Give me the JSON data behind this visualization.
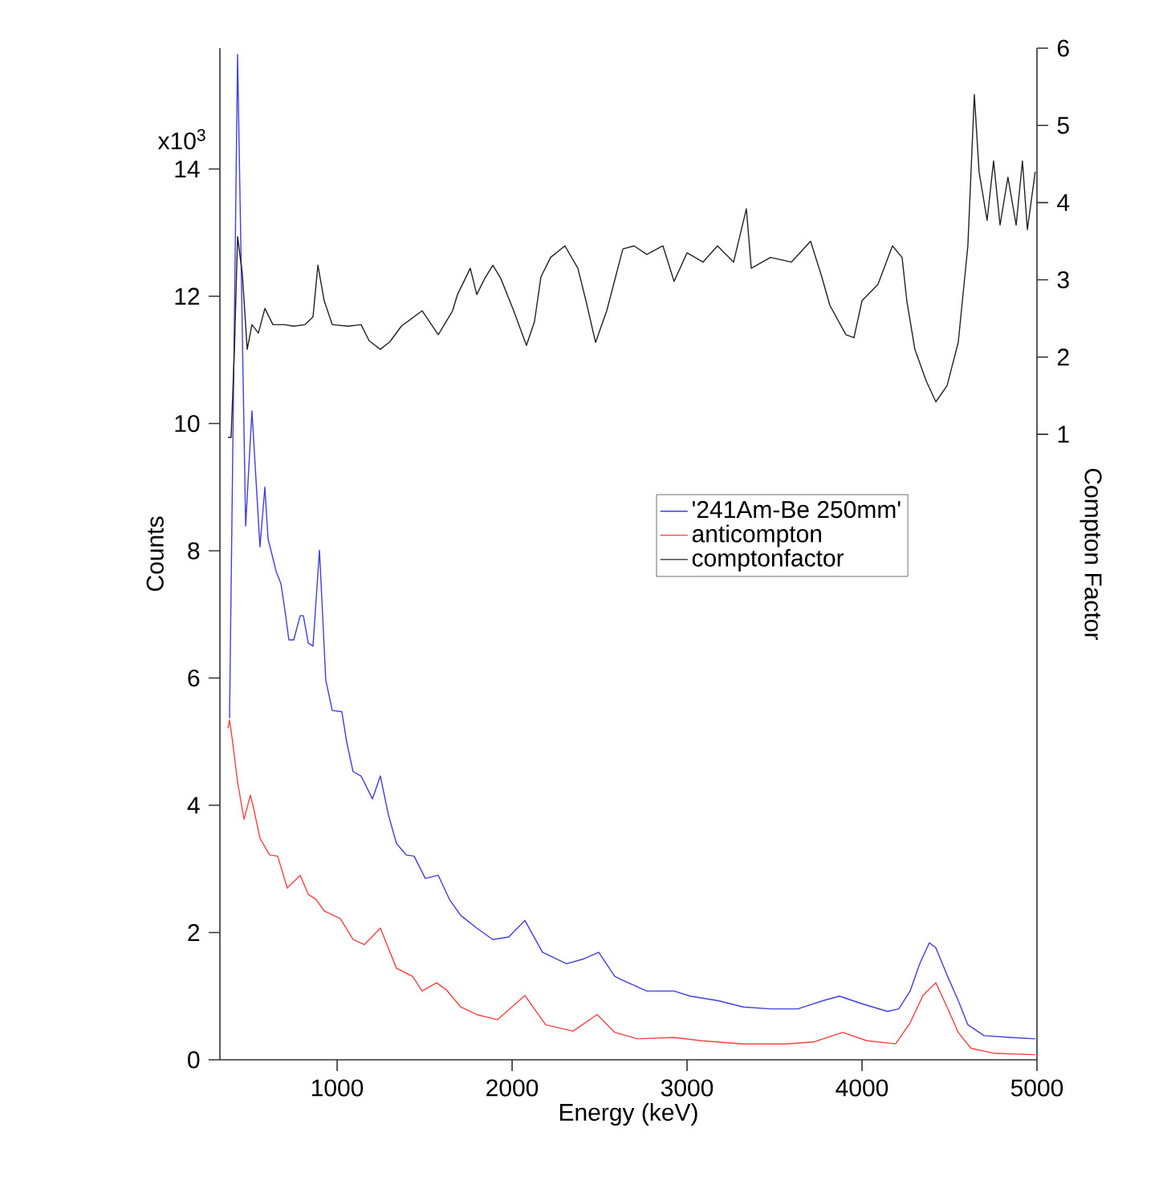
{
  "chart_data": {
    "type": "line",
    "xlabel": "Energy (keV)",
    "ylabel": "Counts",
    "y2label": "Compton Factor",
    "xlim": [
      330,
      5000
    ],
    "xticks": [
      1000,
      2000,
      3000,
      4000,
      5000
    ],
    "ylim": [
      0,
      15.9
    ],
    "yticks": [
      0,
      2,
      4,
      6,
      8,
      10,
      12,
      14
    ],
    "annotations": [
      "x10$^{3}$"
    ],
    "y2lim": [
      -7.1,
      6
    ],
    "y2ticks": [
      1,
      2,
      3,
      4,
      5,
      6
    ],
    "legend": "right",
    "series": [
      {
        "name": "'241Am-Be 250mm'",
        "color": "#3f3fe0",
        "x": [
          385,
          431,
          477,
          513,
          559,
          587,
          605,
          651,
          679,
          706,
          724,
          752,
          789,
          807,
          835,
          862,
          899,
          935,
          972,
          1027,
          1055,
          1091,
          1137,
          1202,
          1247,
          1293,
          1339,
          1394,
          1440,
          1504,
          1578,
          1642,
          1706,
          1798,
          1890,
          1981,
          2073,
          2174,
          2311,
          2403,
          2495,
          2587,
          2624,
          2770,
          2926,
          3018,
          3174,
          3321,
          3477,
          3633,
          3779,
          3871,
          4000,
          4146,
          4210,
          4275,
          4330,
          4385,
          4422,
          4486,
          4550,
          4605,
          4697,
          4853,
          4990
        ],
        "values": [
          5.37,
          15.8,
          8.39,
          10.2,
          8.06,
          9.0,
          8.19,
          7.68,
          7.48,
          6.98,
          6.6,
          6.6,
          6.98,
          6.98,
          6.55,
          6.5,
          8.01,
          5.97,
          5.49,
          5.47,
          4.99,
          4.53,
          4.46,
          4.1,
          4.46,
          3.85,
          3.4,
          3.22,
          3.2,
          2.85,
          2.9,
          2.52,
          2.27,
          2.07,
          1.89,
          1.93,
          2.19,
          1.69,
          1.51,
          1.58,
          1.69,
          1.31,
          1.26,
          1.08,
          1.08,
          1.0,
          0.93,
          0.83,
          0.8,
          0.8,
          0.93,
          1.0,
          0.88,
          0.76,
          0.8,
          1.08,
          1.51,
          1.84,
          1.76,
          1.33,
          0.93,
          0.55,
          0.38,
          0.35,
          0.33
        ]
      },
      {
        "name": "anticompton",
        "color": "#ff4040",
        "x": [
          376,
          385,
          403,
          431,
          468,
          504,
          523,
          559,
          614,
          660,
          715,
          789,
          835,
          880,
          926,
          1018,
          1091,
          1156,
          1247,
          1339,
          1431,
          1486,
          1568,
          1624,
          1706,
          1798,
          1917,
          1991,
          2073,
          2192,
          2348,
          2486,
          2587,
          2715,
          2926,
          3082,
          3321,
          3568,
          3724,
          3890,
          4027,
          4192,
          4275,
          4348,
          4422,
          4486,
          4550,
          4623,
          4761,
          4990
        ],
        "values": [
          5.21,
          5.34,
          4.99,
          4.36,
          3.78,
          4.16,
          3.95,
          3.48,
          3.22,
          3.2,
          2.7,
          2.9,
          2.6,
          2.52,
          2.34,
          2.22,
          1.89,
          1.81,
          2.07,
          1.44,
          1.31,
          1.08,
          1.21,
          1.1,
          0.83,
          0.71,
          0.63,
          0.81,
          1.01,
          0.55,
          0.45,
          0.71,
          0.43,
          0.33,
          0.35,
          0.3,
          0.25,
          0.25,
          0.28,
          0.43,
          0.3,
          0.25,
          0.58,
          1.01,
          1.21,
          0.83,
          0.43,
          0.18,
          0.1,
          0.08
        ]
      },
      {
        "name": "comptonfactor",
        "color": "#222222",
        "axis": "y2",
        "x": [
          376,
          394,
          413,
          431,
          458,
          486,
          513,
          550,
          587,
          633,
          697,
          752,
          816,
          862,
          890,
          926,
          972,
          1064,
          1137,
          1183,
          1247,
          1302,
          1367,
          1486,
          1578,
          1660,
          1688,
          1761,
          1798,
          1844,
          1890,
          1935,
          2009,
          2082,
          2128,
          2165,
          2220,
          2302,
          2376,
          2422,
          2477,
          2541,
          2633,
          2697,
          2770,
          2862,
          2926,
          3000,
          3091,
          3174,
          3266,
          3339,
          3367,
          3477,
          3596,
          3706,
          3770,
          3816,
          3908,
          3954,
          4000,
          4091,
          4174,
          4229,
          4256,
          4302,
          4367,
          4422,
          4486,
          4550,
          4605,
          4642,
          4669,
          4715,
          4752,
          4789,
          4834,
          4881,
          4917,
          4945,
          4990
        ],
        "values": [
          0.96,
          0.96,
          2.1,
          3.56,
          3.08,
          2.1,
          2.42,
          2.31,
          2.63,
          2.42,
          2.42,
          2.4,
          2.42,
          2.52,
          3.19,
          2.73,
          2.42,
          2.4,
          2.42,
          2.21,
          2.1,
          2.2,
          2.4,
          2.6,
          2.29,
          2.6,
          2.81,
          3.15,
          2.81,
          3.02,
          3.19,
          3.02,
          2.6,
          2.15,
          2.46,
          3.04,
          3.29,
          3.44,
          3.15,
          2.73,
          2.19,
          2.6,
          3.4,
          3.44,
          3.33,
          3.44,
          2.98,
          3.35,
          3.23,
          3.44,
          3.23,
          3.92,
          3.15,
          3.29,
          3.23,
          3.5,
          3.04,
          2.67,
          2.29,
          2.25,
          2.73,
          2.94,
          3.44,
          3.29,
          2.73,
          2.1,
          1.69,
          1.42,
          1.63,
          2.19,
          3.44,
          5.4,
          4.4,
          3.77,
          4.54,
          3.71,
          4.33,
          3.71,
          4.54,
          3.65,
          4.4
        ]
      }
    ]
  }
}
